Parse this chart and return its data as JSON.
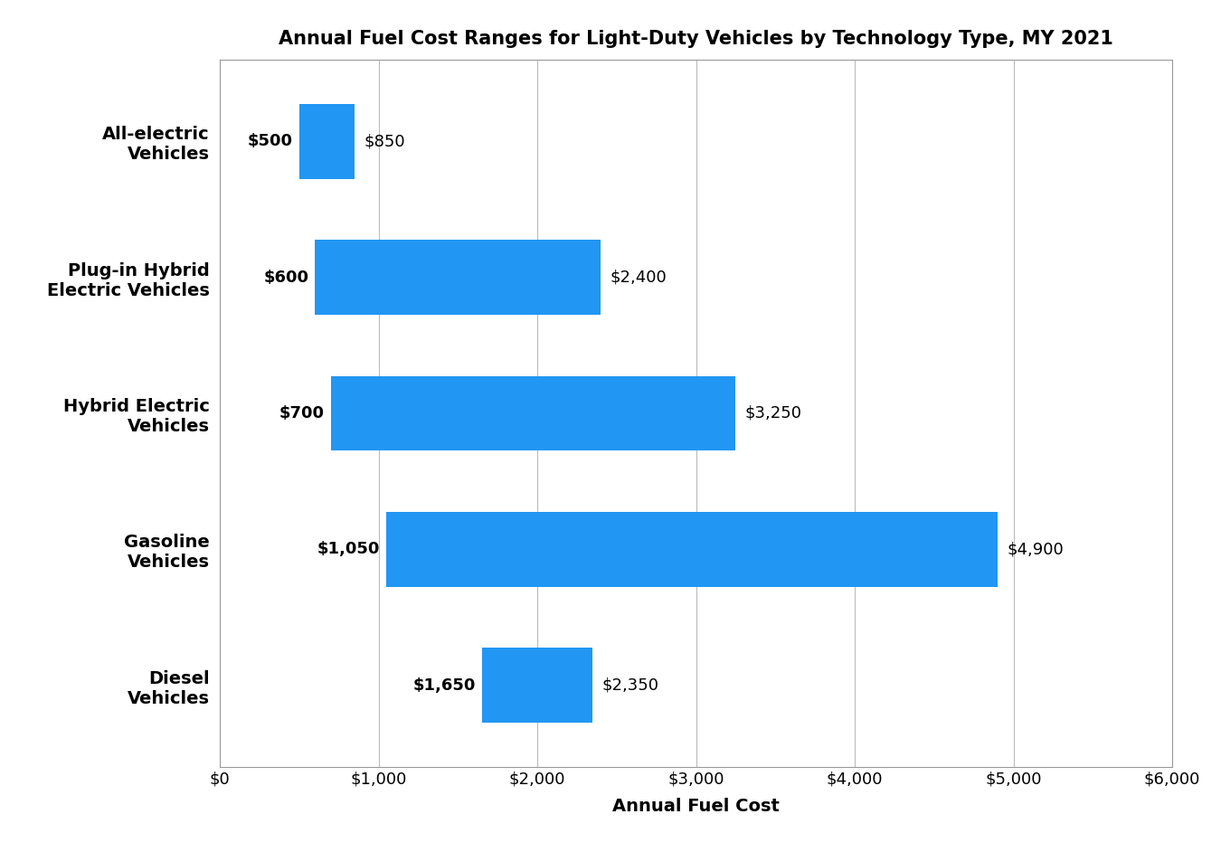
{
  "title": "Annual Fuel Cost Ranges for Light-Duty Vehicles by Technology Type, MY 2021",
  "categories": [
    "Diesel\nVehicles",
    "Gasoline\nVehicles",
    "Hybrid Electric\nVehicles",
    "Plug-in Hybrid\nElectric Vehicles",
    "All-electric\nVehicles"
  ],
  "range_min": [
    1650,
    1050,
    700,
    600,
    500
  ],
  "range_max": [
    2350,
    4900,
    3250,
    2400,
    850
  ],
  "bar_color": "#2196F3",
  "xlabel": "Annual Fuel Cost",
  "xlim": [
    0,
    6000
  ],
  "xtick_values": [
    0,
    1000,
    2000,
    3000,
    4000,
    5000,
    6000
  ],
  "title_fontsize": 15,
  "label_fontsize": 13,
  "tick_fontsize": 13,
  "annotation_fontsize": 13,
  "ytick_fontsize": 14,
  "bar_height": 0.55,
  "background_color": "#ffffff",
  "plot_bg_color": "#ffffff",
  "grid_color": "#bbbbbb",
  "border_color": "#999999"
}
